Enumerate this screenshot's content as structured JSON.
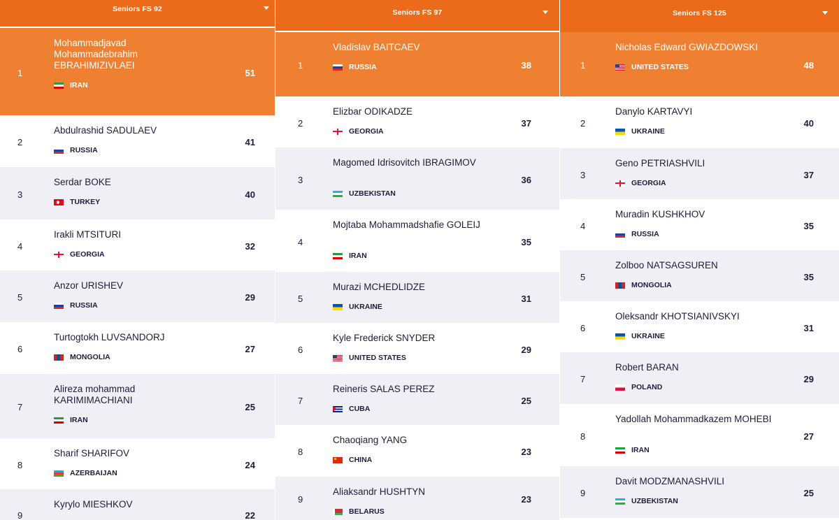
{
  "colors": {
    "accent": "#ec6b1a",
    "top_row": "#ef8031",
    "row_shade": "#efeff5"
  },
  "panels": [
    {
      "title": "Seniors FS 92",
      "rows": [
        {
          "rank": "1",
          "name": "Mohammadjavad Mohammadebrahim EBRAHIMIZIVLAEI",
          "country": "IRAN",
          "flag": "iran",
          "points": "51"
        },
        {
          "rank": "2",
          "name": "Abdulrashid SADULAEV",
          "country": "RUSSIA",
          "flag": "russia",
          "points": "41"
        },
        {
          "rank": "3",
          "name": "Serdar BOKE",
          "country": "TURKEY",
          "flag": "turkey",
          "points": "40"
        },
        {
          "rank": "4",
          "name": "Irakli MTSITURI",
          "country": "GEORGIA",
          "flag": "georgia",
          "points": "32"
        },
        {
          "rank": "5",
          "name": "Anzor URISHEV",
          "country": "RUSSIA",
          "flag": "russia",
          "points": "29"
        },
        {
          "rank": "6",
          "name": "Turtogtokh LUVSANDORJ",
          "country": "MONGOLIA",
          "flag": "mongolia",
          "points": "27"
        },
        {
          "rank": "7",
          "name": "Alireza mohammad KARIMIMACHIANI",
          "country": "IRAN",
          "flag": "iran",
          "points": "25"
        },
        {
          "rank": "8",
          "name": "Sharif SHARIFOV",
          "country": "AZERBAIJAN",
          "flag": "azerbaijan",
          "points": "24"
        },
        {
          "rank": "9",
          "name": "Kyrylo MIESHKOV",
          "country": "",
          "flag": "",
          "points": "22"
        }
      ]
    },
    {
      "title": "Seniors FS 97",
      "rows": [
        {
          "rank": "1",
          "name": "Vladislav BAITCAEV",
          "country": "RUSSIA",
          "flag": "russia",
          "points": "38"
        },
        {
          "rank": "2",
          "name": "Elizbar ODIKADZE",
          "country": "GEORGIA",
          "flag": "georgia",
          "points": "37"
        },
        {
          "rank": "3",
          "name": "Magomed Idrisovitch IBRAGIMOV",
          "country": "UZBEKISTAN",
          "flag": "uzbekistan",
          "points": "36"
        },
        {
          "rank": "4",
          "name": "Mojtaba Mohammadshafie GOLEIJ",
          "country": "IRAN",
          "flag": "iran",
          "points": "35"
        },
        {
          "rank": "5",
          "name": "Murazi MCHEDLIDZE",
          "country": "UKRAINE",
          "flag": "ukraine",
          "points": "31"
        },
        {
          "rank": "6",
          "name": "Kyle Frederick SNYDER",
          "country": "UNITED STATES",
          "flag": "usa",
          "points": "29"
        },
        {
          "rank": "7",
          "name": "Reineris SALAS PEREZ",
          "country": "CUBA",
          "flag": "cuba",
          "points": "25"
        },
        {
          "rank": "8",
          "name": "Chaoqiang YANG",
          "country": "CHINA",
          "flag": "china",
          "points": "23"
        },
        {
          "rank": "9",
          "name": "Aliaksandr HUSHTYN",
          "country": "BELARUS",
          "flag": "belarus",
          "points": "23"
        }
      ]
    },
    {
      "title": "Seniors FS 125",
      "rows": [
        {
          "rank": "1",
          "name": "Nicholas Edward GWIAZDOWSKI",
          "country": "UNITED STATES",
          "flag": "usa",
          "points": "48"
        },
        {
          "rank": "2",
          "name": "Danylo KARTAVYI",
          "country": "UKRAINE",
          "flag": "ukraine",
          "points": "40"
        },
        {
          "rank": "3",
          "name": "Geno PETRIASHVILI",
          "country": "GEORGIA",
          "flag": "georgia",
          "points": "37"
        },
        {
          "rank": "4",
          "name": "Muradin KUSHKHOV",
          "country": "RUSSIA",
          "flag": "russia",
          "points": "35"
        },
        {
          "rank": "5",
          "name": "Zolboo NATSAGSUREN",
          "country": "MONGOLIA",
          "flag": "mongolia",
          "points": "35"
        },
        {
          "rank": "6",
          "name": "Oleksandr KHOTSIANIVSKYI",
          "country": "UKRAINE",
          "flag": "ukraine",
          "points": "31"
        },
        {
          "rank": "7",
          "name": "Robert BARAN",
          "country": "POLAND",
          "flag": "poland",
          "points": "29"
        },
        {
          "rank": "8",
          "name": "Yadollah Mohammadkazem MOHEBI",
          "country": "IRAN",
          "flag": "iran",
          "points": "27"
        },
        {
          "rank": "9",
          "name": "Davit MODZMANASHVILI",
          "country": "UZBEKISTAN",
          "flag": "uzbekistan",
          "points": "25"
        }
      ]
    }
  ]
}
